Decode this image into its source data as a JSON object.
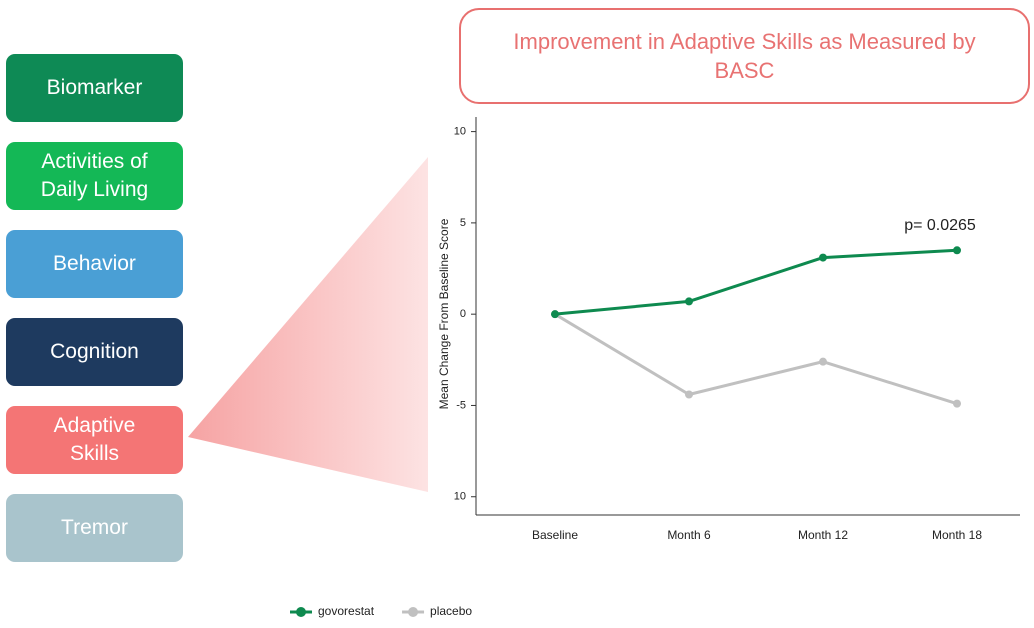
{
  "menu": [
    {
      "label": "Biomarker",
      "color": "#0e8a55"
    },
    {
      "label": "Activities of Daily Living",
      "color": "#14b856"
    },
    {
      "label": "Behavior",
      "color": "#4a9fd5"
    },
    {
      "label": "Cognition",
      "color": "#1e3a5f"
    },
    {
      "label": "Adaptive Skills",
      "color": "#f47575"
    },
    {
      "label": "Tremor",
      "color": "#a9c4cc"
    }
  ],
  "chart_data": {
    "type": "line",
    "title": "Improvement in Adaptive Skills as Measured by BASC",
    "y_label": "Mean Change From Baseline Score",
    "annotation": "p= 0.0265",
    "categories": [
      "Baseline",
      "Month 6",
      "Month 12",
      "Month 18"
    ],
    "series": [
      {
        "name": "govorestat",
        "color": "#0e8a4f",
        "values": [
          0,
          0.7,
          3.1,
          3.5
        ]
      },
      {
        "name": "placebo",
        "color": "#c0c0c0",
        "values": [
          0,
          -4.4,
          -2.6,
          -4.9
        ]
      }
    ],
    "ylim": [
      -11,
      10.8
    ],
    "yticks": [
      10,
      5,
      0,
      -5,
      {
        "value": -10,
        "label": "10"
      }
    ],
    "grid": false
  }
}
